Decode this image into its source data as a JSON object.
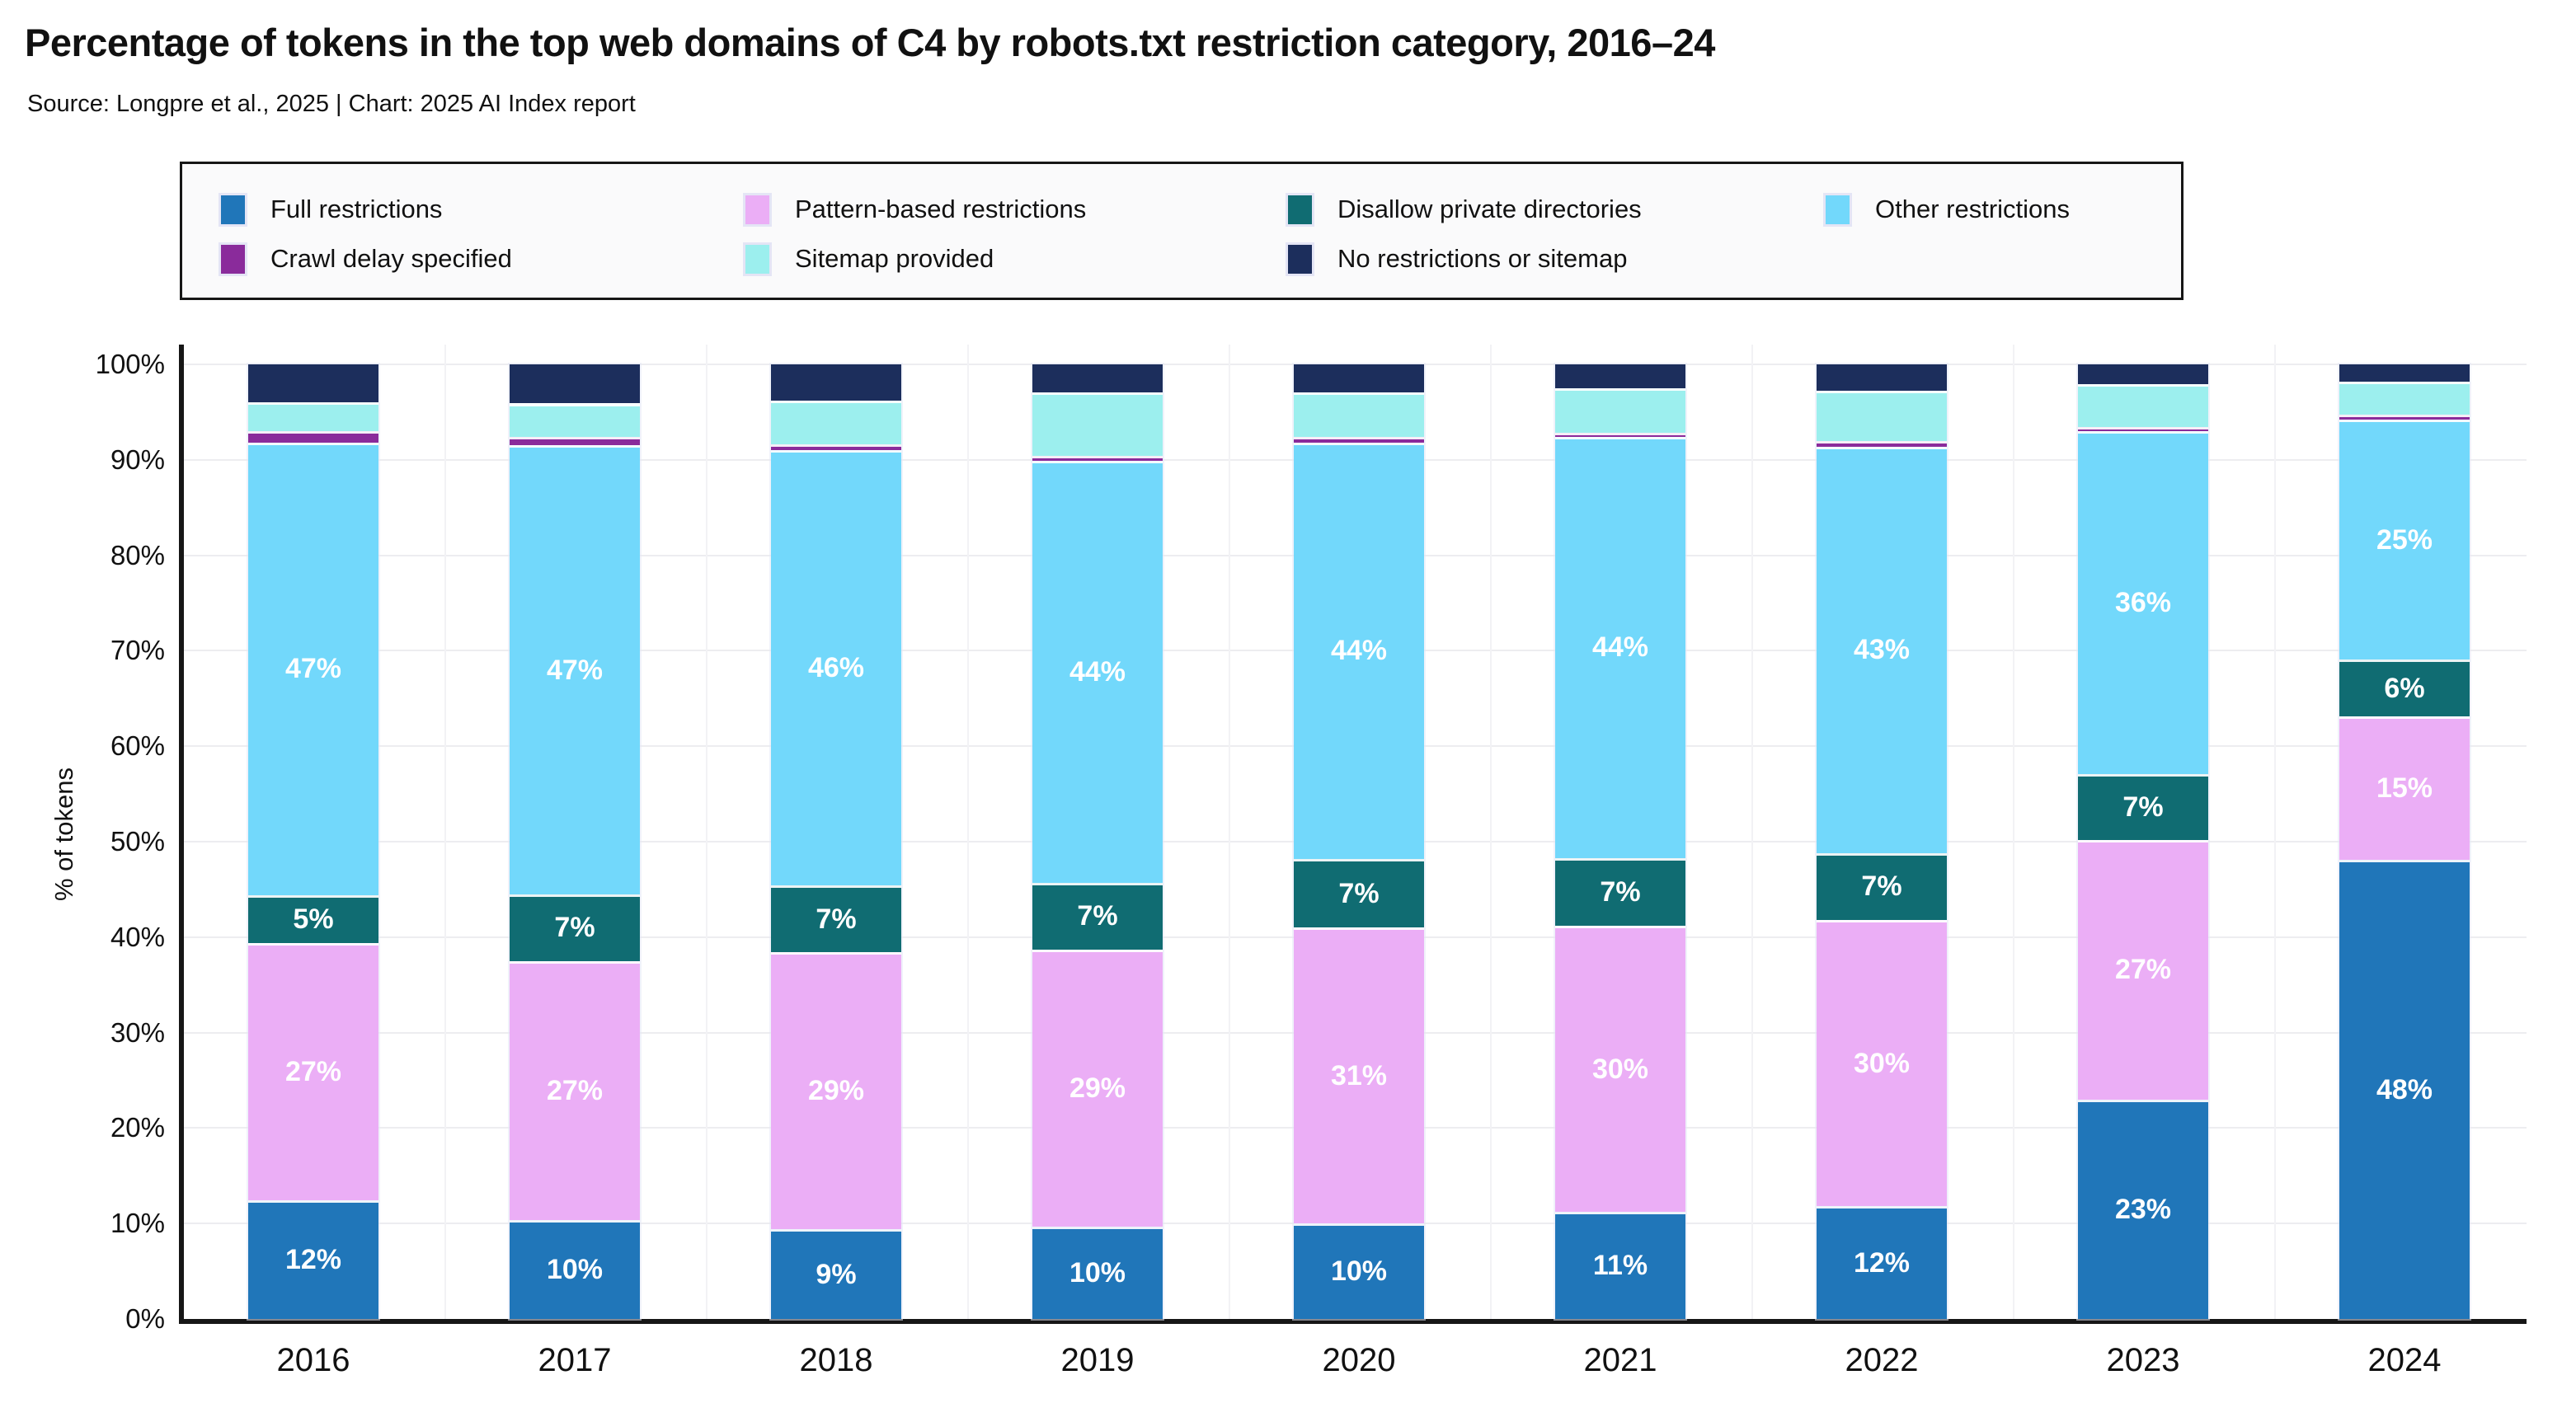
{
  "header": {
    "title": "Percentage of tokens in the top web domains of C4 by robots.txt restriction category, 2016–24",
    "source": "Source: Longpre et al., 2025 | Chart: 2025 AI Index report"
  },
  "legend": {
    "order": [
      "full-restrictions",
      "pattern-based-restrictions",
      "disallow-private-directories",
      "other-restrictions",
      "crawl-delay-specified",
      "sitemap-provided",
      "no-restrictions-or-sitemap"
    ]
  },
  "chart_data": {
    "type": "bar",
    "stacked": true,
    "title": "Percentage of tokens in the top web domains of C4 by robots.txt restriction category, 2016–24",
    "xlabel": "",
    "ylabel": "% of tokens",
    "ylim": [
      0,
      100
    ],
    "yticks": [
      0,
      10,
      20,
      30,
      40,
      50,
      60,
      70,
      80,
      90,
      100
    ],
    "ytick_suffix": "%",
    "grid": true,
    "legend_position": "top",
    "categories": [
      "2016",
      "2017",
      "2018",
      "2019",
      "2020",
      "2021",
      "2022",
      "2023",
      "2024"
    ],
    "series": [
      {
        "key": "full-restrictions",
        "name": "Full restrictions",
        "color": "#2076B9",
        "values": [
          12.4,
          10.4,
          9.4,
          9.7,
          10.0,
          11.2,
          11.8,
          23.0,
          48.1
        ],
        "labels": [
          "12%",
          "10%",
          "9%",
          "10%",
          "10%",
          "11%",
          "12%",
          "23%",
          "48%"
        ]
      },
      {
        "key": "pattern-based-restrictions",
        "name": "Pattern-based restrictions",
        "color": "#EBAEF6",
        "values": [
          27.0,
          27.1,
          29.0,
          29.0,
          31.0,
          30.0,
          30.0,
          27.2,
          15.0
        ],
        "labels": [
          "27%",
          "27%",
          "29%",
          "29%",
          "31%",
          "30%",
          "30%",
          "27%",
          "15%"
        ]
      },
      {
        "key": "disallow-private-directories",
        "name": "Disallow private directories",
        "color": "#106C72",
        "values": [
          5.0,
          7.0,
          7.0,
          7.0,
          7.2,
          7.1,
          7.0,
          6.9,
          6.0
        ],
        "labels": [
          "5%",
          "7%",
          "7%",
          "7%",
          "7%",
          "7%",
          "7%",
          "7%",
          "6%"
        ]
      },
      {
        "key": "other-restrictions",
        "name": "Other restrictions",
        "color": "#72D8FB",
        "values": [
          47.4,
          47.0,
          45.6,
          44.2,
          43.6,
          44.1,
          42.6,
          35.9,
          25.1
        ],
        "labels": [
          "47%",
          "47%",
          "46%",
          "44%",
          "44%",
          "44%",
          "43%",
          "36%",
          "25%"
        ]
      },
      {
        "key": "crawl-delay-specified",
        "name": "Crawl delay specified",
        "color": "#8A2B9B",
        "values": [
          1.2,
          0.9,
          0.6,
          0.5,
          0.6,
          0.4,
          0.6,
          0.4,
          0.5
        ],
        "labels": null
      },
      {
        "key": "sitemap-provided",
        "name": "Sitemap provided",
        "color": "#9CEFEE",
        "values": [
          3.0,
          3.5,
          4.6,
          6.7,
          4.7,
          4.7,
          5.2,
          4.5,
          3.5
        ],
        "labels": null
      },
      {
        "key": "no-restrictions-or-sitemap",
        "name": "No restrictions or sitemap",
        "color": "#1C2E5C",
        "values": [
          4.0,
          4.1,
          3.8,
          2.9,
          2.9,
          2.5,
          2.8,
          2.1,
          1.8
        ],
        "labels": null
      }
    ]
  }
}
